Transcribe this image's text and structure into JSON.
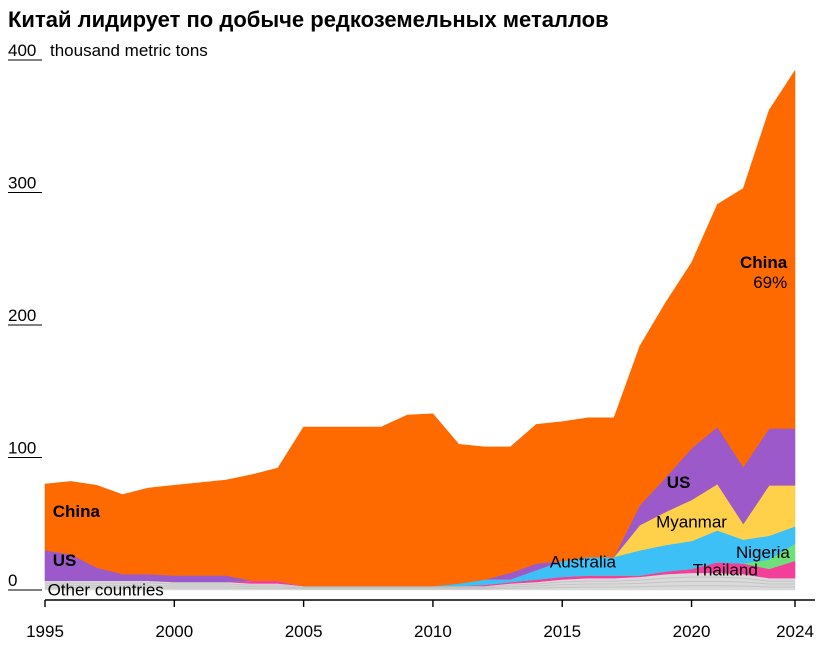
{
  "title": "Китай лидирует по добыче редкоземельных металлов",
  "unit_label": "thousand metric tons",
  "colors": {
    "china": "#FF6A00",
    "us": "#9B59C9",
    "australia": "#3CC0F5",
    "myanmar": "#FFD04A",
    "thailand": "#F2409A",
    "nigeria": "#6EE07A",
    "other": "#DADADA",
    "axis": "#000000"
  },
  "chart_data": {
    "type": "area",
    "stacked": true,
    "title": "Китай лидирует по добыче редкоземельных металлов",
    "ylabel": "thousand metric tons",
    "xlim": [
      1995,
      2024
    ],
    "ylim": [
      0,
      400
    ],
    "y_ticks": [
      0,
      100,
      200,
      300,
      400
    ],
    "x_ticks": [
      1995,
      2000,
      2005,
      2010,
      2015,
      2020,
      2024
    ],
    "x": [
      1995,
      1996,
      1997,
      1998,
      1999,
      2000,
      2001,
      2002,
      2003,
      2004,
      2005,
      2006,
      2007,
      2008,
      2009,
      2010,
      2011,
      2012,
      2013,
      2014,
      2015,
      2016,
      2017,
      2018,
      2019,
      2020,
      2021,
      2022,
      2023,
      2024
    ],
    "series": [
      {
        "name": "Other countries",
        "key": "other",
        "values": [
          7,
          7,
          7,
          7,
          7,
          6,
          6,
          6,
          5,
          5,
          3,
          3,
          3,
          3,
          3,
          3,
          3,
          3,
          5,
          6,
          8,
          9,
          9,
          10,
          12,
          13,
          13,
          12,
          9,
          9
        ]
      },
      {
        "name": "Thailand",
        "key": "thailand",
        "values": [
          0,
          0,
          0,
          0,
          0,
          0,
          0,
          0,
          2,
          2,
          0,
          0,
          0,
          0,
          0,
          0,
          0,
          1,
          1,
          2,
          2,
          2,
          2,
          1,
          2,
          3,
          8,
          8,
          7,
          13
        ]
      },
      {
        "name": "Nigeria",
        "key": "nigeria",
        "values": [
          0,
          0,
          0,
          0,
          0,
          0,
          0,
          0,
          0,
          0,
          0,
          0,
          0,
          0,
          0,
          0,
          0,
          0,
          0,
          0,
          0,
          0,
          0,
          0,
          0,
          0,
          0,
          0,
          7,
          13
        ]
      },
      {
        "name": "Australia",
        "key": "australia",
        "values": [
          0,
          0,
          0,
          0,
          0,
          0,
          0,
          0,
          0,
          0,
          0,
          0,
          0,
          0,
          0,
          0,
          2,
          4,
          2,
          7,
          12,
          14,
          14,
          19,
          20,
          21,
          24,
          18,
          18,
          13
        ]
      },
      {
        "name": "Myanmar",
        "key": "myanmar",
        "values": [
          0,
          0,
          0,
          0,
          0,
          0,
          0,
          0,
          0,
          0,
          0,
          0,
          0,
          0,
          0,
          0,
          0,
          0,
          0,
          0,
          0,
          0,
          0,
          19,
          25,
          31,
          35,
          12,
          38,
          31
        ]
      },
      {
        "name": "US",
        "key": "us",
        "values": [
          23,
          20,
          10,
          5,
          5,
          5,
          5,
          5,
          0,
          0,
          0,
          0,
          0,
          0,
          0,
          0,
          0,
          0,
          5,
          5,
          0,
          0,
          0,
          15,
          26,
          39,
          43,
          43,
          43,
          43
        ]
      },
      {
        "name": "China",
        "key": "china",
        "values": [
          50,
          55,
          62,
          60,
          65,
          68,
          70,
          72,
          80,
          85,
          120,
          120,
          120,
          120,
          129,
          130,
          105,
          100,
          95,
          105,
          105,
          105,
          105,
          120,
          132,
          140,
          168,
          210,
          240,
          270
        ]
      }
    ],
    "annotations": [
      {
        "text": "China",
        "series": "china"
      },
      {
        "text": "China",
        "series": "china"
      },
      {
        "text": "69%",
        "series": "china"
      },
      {
        "text": "US",
        "series": "us"
      },
      {
        "text": "US",
        "series": "us"
      },
      {
        "text": "Myanmar",
        "series": "myanmar"
      },
      {
        "text": "Australia",
        "series": "australia"
      },
      {
        "text": "Thailand",
        "series": "thailand"
      },
      {
        "text": "Nigeria",
        "series": "nigeria"
      },
      {
        "text": "Other countries",
        "series": "other"
      }
    ]
  }
}
